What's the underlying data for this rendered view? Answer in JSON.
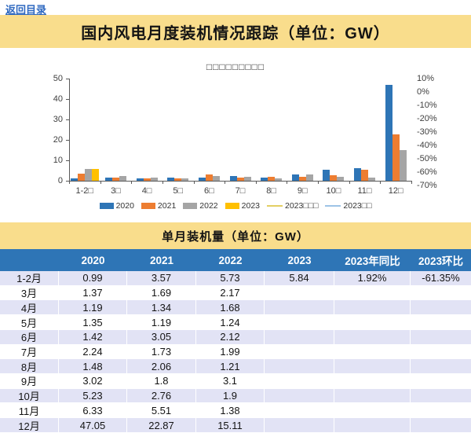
{
  "page": {
    "back_link": "返回目录"
  },
  "header": {
    "title": "国内风电月度装机情况跟踪（单位：GW）"
  },
  "chart_data": {
    "type": "bar",
    "title": "□□□□□□□□□",
    "categories": [
      "1-2□",
      "3□",
      "4□",
      "5□",
      "6□",
      "7□",
      "8□",
      "9□",
      "10□",
      "11□",
      "12□"
    ],
    "series": [
      {
        "name": "2020",
        "type": "bar",
        "color": "#2E75B6",
        "values": [
          0.99,
          1.37,
          1.19,
          1.35,
          1.42,
          2.24,
          1.48,
          3.02,
          5.23,
          6.33,
          47.05
        ]
      },
      {
        "name": "2021",
        "type": "bar",
        "color": "#ED7D31",
        "values": [
          3.57,
          1.69,
          1.34,
          1.19,
          3.05,
          1.73,
          2.06,
          1.8,
          2.76,
          5.51,
          22.87
        ]
      },
      {
        "name": "2022",
        "type": "bar",
        "color": "#A5A5A5",
        "values": [
          5.73,
          2.17,
          1.68,
          1.24,
          2.12,
          1.99,
          1.21,
          3.1,
          1.9,
          1.38,
          15.11
        ]
      },
      {
        "name": "2023",
        "type": "bar",
        "color": "#FFC000",
        "values": [
          5.84,
          null,
          null,
          null,
          null,
          null,
          null,
          null,
          null,
          null,
          null
        ]
      },
      {
        "name": "2023□□□",
        "type": "line",
        "color": "#E3CF63",
        "axis": "right",
        "unit": "%",
        "values": [
          1.92,
          null,
          null,
          null,
          null,
          null,
          null,
          null,
          null,
          null,
          null
        ]
      },
      {
        "name": "2023□□",
        "type": "line",
        "color": "#9DC3E6",
        "axis": "right",
        "unit": "%",
        "values": [
          -61.35,
          null,
          null,
          null,
          null,
          null,
          null,
          null,
          null,
          null,
          null
        ]
      }
    ],
    "left_axis": {
      "min": 0,
      "max": 50,
      "tick_labels": [
        "0",
        "10",
        "20",
        "30",
        "40",
        "50"
      ]
    },
    "right_axis": {
      "tick_labels": [
        "10%",
        "0%",
        "-10%",
        "-20%",
        "-30%",
        "-40%",
        "-50%",
        "-60%",
        "-70%"
      ]
    },
    "legend_position": "bottom",
    "grid": false
  },
  "table": {
    "title": "单月装机量（单位：GW）",
    "columns": [
      "",
      "2020",
      "2021",
      "2022",
      "2023",
      "2023年同比",
      "2023环比"
    ],
    "rows": [
      [
        "1-2月",
        "0.99",
        "3.57",
        "5.73",
        "5.84",
        "1.92%",
        "-61.35%"
      ],
      [
        "3月",
        "1.37",
        "1.69",
        "2.17",
        "",
        "",
        ""
      ],
      [
        "4月",
        "1.19",
        "1.34",
        "1.68",
        "",
        "",
        ""
      ],
      [
        "5月",
        "1.35",
        "1.19",
        "1.24",
        "",
        "",
        ""
      ],
      [
        "6月",
        "1.42",
        "3.05",
        "2.12",
        "",
        "",
        ""
      ],
      [
        "7月",
        "2.24",
        "1.73",
        "1.99",
        "",
        "",
        ""
      ],
      [
        "8月",
        "1.48",
        "2.06",
        "1.21",
        "",
        "",
        ""
      ],
      [
        "9月",
        "3.02",
        "1.8",
        "3.1",
        "",
        "",
        ""
      ],
      [
        "10月",
        "5.23",
        "2.76",
        "1.9",
        "",
        "",
        ""
      ],
      [
        "11月",
        "6.33",
        "5.51",
        "1.38",
        "",
        "",
        ""
      ],
      [
        "12月",
        "47.05",
        "22.87",
        "15.11",
        "",
        "",
        ""
      ]
    ]
  },
  "colors": {
    "banner_bg": "#F9DD8C",
    "table_header_bg": "#2E75B6",
    "row_alt_bg": "#E2E3F5",
    "link": "#2E68C0",
    "axis": "#595959",
    "label": "#404040"
  }
}
